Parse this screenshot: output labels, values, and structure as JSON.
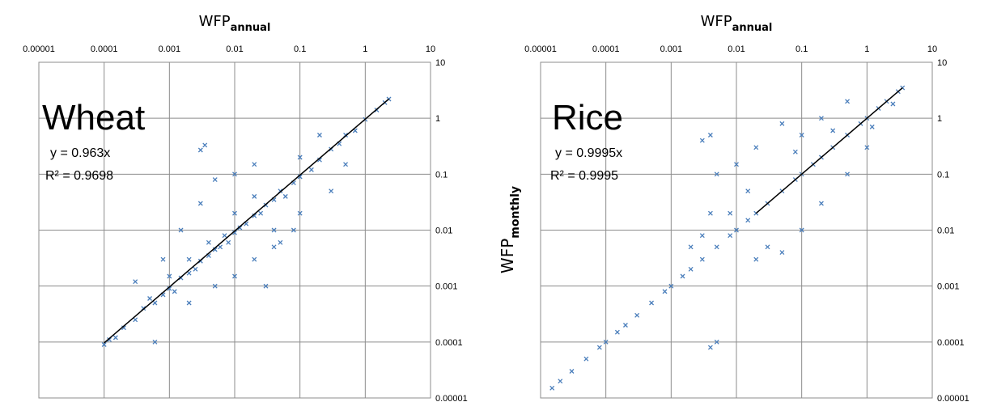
{
  "chart_data": [
    {
      "type": "scatter",
      "name": "Wheat",
      "title": "",
      "xlabel": "WFP",
      "xlabel_sub": "annual",
      "ylabel": "",
      "ylabel_sub": "",
      "x_scale": "log",
      "y_scale": "log",
      "xlim": [
        1e-05,
        10
      ],
      "ylim": [
        1e-05,
        10
      ],
      "x_ticks": [
        "0.00001",
        "0.0001",
        "0.001",
        "0.01",
        "0.1",
        "1",
        "10"
      ],
      "y_ticks": [
        "0.00001",
        "0.0001",
        "0.001",
        "0.01",
        "0.1",
        "1",
        "10"
      ],
      "annotation": "Wheat",
      "equation": "y = 0.963x",
      "r2_label": "R² = 0.9698",
      "trendline": {
        "slope": 0.963,
        "x_range": [
          0.0001,
          2.3
        ]
      },
      "grid": true,
      "marker": "x",
      "series_color": "#4a7ebb",
      "trend_color": "#000000",
      "points": [
        [
          0.0001,
          9e-05
        ],
        [
          0.00012,
          0.00011
        ],
        [
          0.00015,
          0.00012
        ],
        [
          0.0002,
          0.00018
        ],
        [
          0.0003,
          0.00025
        ],
        [
          0.0004,
          0.0004
        ],
        [
          0.0005,
          0.0006
        ],
        [
          0.0006,
          0.0005
        ],
        [
          0.0008,
          0.0007
        ],
        [
          0.001,
          0.0009
        ],
        [
          0.001,
          0.0015
        ],
        [
          0.0012,
          0.0008
        ],
        [
          0.0015,
          0.0014
        ],
        [
          0.002,
          0.0017
        ],
        [
          0.002,
          0.003
        ],
        [
          0.0025,
          0.002
        ],
        [
          0.003,
          0.0028
        ],
        [
          0.004,
          0.0035
        ],
        [
          0.004,
          0.006
        ],
        [
          0.005,
          0.0045
        ],
        [
          0.006,
          0.005
        ],
        [
          0.007,
          0.008
        ],
        [
          0.008,
          0.006
        ],
        [
          0.01,
          0.009
        ],
        [
          0.01,
          0.02
        ],
        [
          0.012,
          0.011
        ],
        [
          0.015,
          0.013
        ],
        [
          0.02,
          0.018
        ],
        [
          0.02,
          0.04
        ],
        [
          0.025,
          0.02
        ],
        [
          0.03,
          0.028
        ],
        [
          0.04,
          0.035
        ],
        [
          0.04,
          0.01
        ],
        [
          0.05,
          0.05
        ],
        [
          0.06,
          0.04
        ],
        [
          0.08,
          0.07
        ],
        [
          0.1,
          0.09
        ],
        [
          0.1,
          0.2
        ],
        [
          0.15,
          0.12
        ],
        [
          0.2,
          0.18
        ],
        [
          0.3,
          0.28
        ],
        [
          0.4,
          0.35
        ],
        [
          0.5,
          0.5
        ],
        [
          0.7,
          0.6
        ],
        [
          1,
          0.95
        ],
        [
          1.5,
          1.4
        ],
        [
          2,
          1.9
        ],
        [
          2.3,
          2.2
        ],
        [
          0.003,
          0.27
        ],
        [
          0.0035,
          0.33
        ],
        [
          0.002,
          0.0005
        ],
        [
          0.005,
          0.001
        ],
        [
          0.01,
          0.0015
        ],
        [
          0.02,
          0.003
        ],
        [
          0.03,
          0.001
        ],
        [
          0.05,
          0.006
        ],
        [
          0.08,
          0.01
        ],
        [
          0.1,
          0.02
        ],
        [
          0.0015,
          0.01
        ],
        [
          0.003,
          0.03
        ],
        [
          0.005,
          0.08
        ],
        [
          0.01,
          0.1
        ],
        [
          0.02,
          0.15
        ],
        [
          0.0008,
          0.003
        ],
        [
          0.0003,
          0.0012
        ],
        [
          0.0006,
          0.0001
        ],
        [
          0.04,
          0.005
        ],
        [
          0.3,
          0.05
        ],
        [
          0.5,
          0.15
        ],
        [
          0.2,
          0.5
        ]
      ]
    },
    {
      "type": "scatter",
      "name": "Rice",
      "title": "",
      "xlabel": "WFP",
      "xlabel_sub": "annual",
      "ylabel": "WFP",
      "ylabel_sub": "monthly",
      "x_scale": "log",
      "y_scale": "log",
      "xlim": [
        1e-05,
        10
      ],
      "ylim": [
        1e-05,
        10
      ],
      "x_ticks": [
        "0.00001",
        "0.0001",
        "0.001",
        "0.01",
        "0.1",
        "1",
        "10"
      ],
      "y_ticks": [
        "0.00001",
        "0.0001",
        "0.001",
        "0.01",
        "0.1",
        "1",
        "10"
      ],
      "annotation": "Rice",
      "equation": "y = 0.9995x",
      "r2_label": "R² = 0.9995",
      "trendline": {
        "slope": 0.9995,
        "x_range": [
          0.02,
          3.5
        ]
      },
      "grid": true,
      "marker": "x",
      "series_color": "#4a7ebb",
      "trend_color": "#000000",
      "points": [
        [
          1.5e-05,
          1.5e-05
        ],
        [
          2e-05,
          2e-05
        ],
        [
          3e-05,
          3e-05
        ],
        [
          5e-05,
          5e-05
        ],
        [
          8e-05,
          8e-05
        ],
        [
          0.0001,
          0.0001
        ],
        [
          0.00015,
          0.00015
        ],
        [
          0.0002,
          0.0002
        ],
        [
          0.0003,
          0.0003
        ],
        [
          0.0005,
          0.0005
        ],
        [
          0.0008,
          0.0008
        ],
        [
          0.001,
          0.001
        ],
        [
          0.0015,
          0.0015
        ],
        [
          0.002,
          0.002
        ],
        [
          0.003,
          0.003
        ],
        [
          0.005,
          0.005
        ],
        [
          0.008,
          0.008
        ],
        [
          0.01,
          0.01
        ],
        [
          0.015,
          0.015
        ],
        [
          0.02,
          0.02
        ],
        [
          0.03,
          0.03
        ],
        [
          0.05,
          0.05
        ],
        [
          0.08,
          0.08
        ],
        [
          0.1,
          0.1
        ],
        [
          0.15,
          0.15
        ],
        [
          0.2,
          0.2
        ],
        [
          0.3,
          0.3
        ],
        [
          0.5,
          0.5
        ],
        [
          0.8,
          0.8
        ],
        [
          1,
          1
        ],
        [
          1.5,
          1.5
        ],
        [
          2,
          2
        ],
        [
          3,
          3
        ],
        [
          3.5,
          3.5
        ],
        [
          0.003,
          0.4
        ],
        [
          0.004,
          0.5
        ],
        [
          0.005,
          0.1
        ],
        [
          0.01,
          0.15
        ],
        [
          0.02,
          0.3
        ],
        [
          0.05,
          0.8
        ],
        [
          0.1,
          0.5
        ],
        [
          0.2,
          1
        ],
        [
          0.5,
          2
        ],
        [
          1,
          0.3
        ],
        [
          0.5,
          0.1
        ],
        [
          0.2,
          0.03
        ],
        [
          0.1,
          0.01
        ],
        [
          0.05,
          0.004
        ],
        [
          0.03,
          0.005
        ],
        [
          0.02,
          0.003
        ],
        [
          0.005,
          0.0001
        ],
        [
          0.004,
          8e-05
        ],
        [
          0.008,
          0.02
        ],
        [
          0.015,
          0.05
        ],
        [
          0.003,
          0.008
        ],
        [
          0.002,
          0.005
        ],
        [
          0.004,
          0.02
        ],
        [
          0.08,
          0.25
        ],
        [
          0.3,
          0.6
        ],
        [
          1.2,
          0.7
        ],
        [
          2.5,
          1.8
        ]
      ]
    }
  ]
}
